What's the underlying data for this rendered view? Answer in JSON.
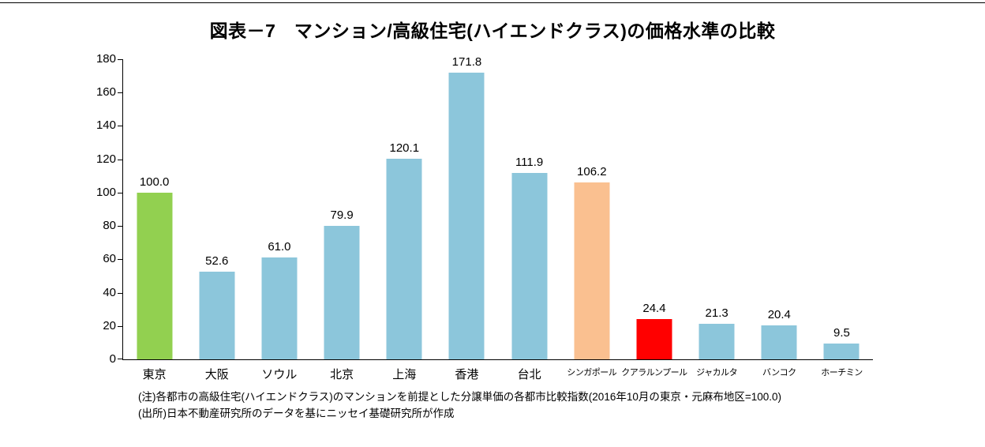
{
  "page": {
    "notes": [
      "(注)各都市の高級住宅(ハイエンドクラス)のマンションを前提とした分譲単価の各都市比較指数(2016年10月の東京・元麻布地区=100.0)",
      "(出所)日本不動産研究所のデータを基にニッセイ基礎研究所が作成"
    ]
  },
  "chart_data": {
    "type": "bar",
    "title": "図表－7　マンション/高級住宅(ハイエンドクラス)の価格水準の比較",
    "categories": [
      "東京",
      "大阪",
      "ソウル",
      "北京",
      "上海",
      "香港",
      "台北",
      "シンガポール",
      "クアラルンプール",
      "ジャカルタ",
      "バンコク",
      "ホーチミン"
    ],
    "values": [
      100.0,
      52.6,
      61.0,
      79.9,
      120.1,
      171.8,
      111.9,
      106.2,
      24.4,
      21.3,
      20.4,
      9.5
    ],
    "value_label_decimals": 1,
    "bar_colors": [
      "#92D050",
      "#8CC6DB",
      "#8CC6DB",
      "#8CC6DB",
      "#8CC6DB",
      "#8CC6DB",
      "#8CC6DB",
      "#FAC090",
      "#FF0000",
      "#8CC6DB",
      "#8CC6DB",
      "#8CC6DB"
    ],
    "xlabel": "",
    "ylabel": "",
    "ylim": [
      0,
      180
    ],
    "ytick_step": 20,
    "grid": false,
    "legend": "none",
    "axis_color": "#000000",
    "text_color": "#000000"
  }
}
